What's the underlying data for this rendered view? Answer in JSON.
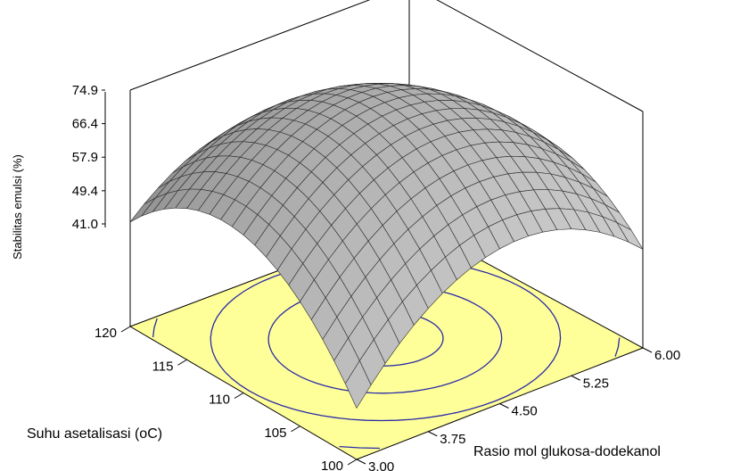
{
  "chart_data": {
    "type": "surface",
    "zlabel": "Stabilitas emulsi (%)",
    "xlabel": "Rasio mol glukosa-dodekanol",
    "ylabel": "Suhu asetalisasi (oC)",
    "x_ticks": [
      "3.00",
      "3.75",
      "4.50",
      "5.25",
      "6.00"
    ],
    "y_ticks": [
      "100",
      "105",
      "110",
      "115",
      "120"
    ],
    "z_ticks": [
      "41.0",
      "49.4",
      "57.9",
      "66.4",
      "74.9"
    ],
    "x_range": [
      3.0,
      6.0
    ],
    "y_range": [
      100,
      120
    ],
    "z_range": [
      41.0,
      74.9
    ],
    "surface_points": [
      {
        "x": 3.0,
        "y": 100,
        "z": 28
      },
      {
        "x": 3.0,
        "y": 120,
        "z": 41.5
      },
      {
        "x": 6.0,
        "y": 120,
        "z": 28
      },
      {
        "x": 6.0,
        "y": 100,
        "z": 40
      },
      {
        "x": 4.5,
        "y": 110,
        "z": 74.9
      }
    ],
    "grid_divisions": 20,
    "contour_levels": 5,
    "floor_color": "#ffff99",
    "contour_color": "#2a2aa8",
    "surface_color": "#a8a8a8",
    "grid": true
  }
}
